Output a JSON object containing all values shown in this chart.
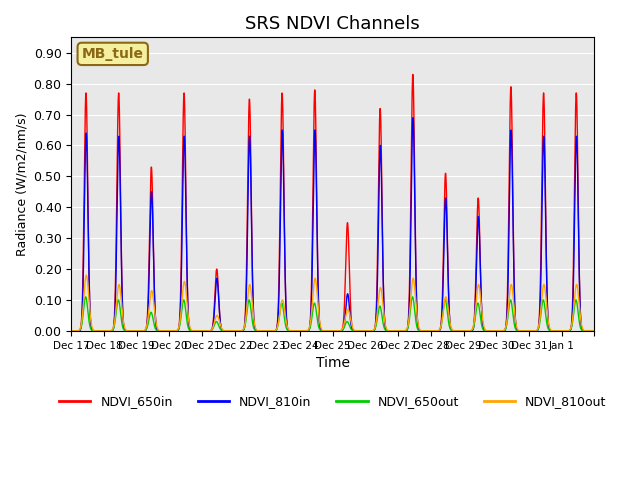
{
  "title": "SRS NDVI Channels",
  "xlabel": "Time",
  "ylabel": "Radiance (W/m2/nm/s)",
  "ylim": [
    0.0,
    0.95
  ],
  "yticks": [
    0.0,
    0.1,
    0.2,
    0.3,
    0.4,
    0.5,
    0.6,
    0.7,
    0.8,
    0.9
  ],
  "bg_color": "#e8e8e8",
  "annotation_text": "MB_tule",
  "annotation_bg": "#f5f0a0",
  "annotation_border": "#8b6914",
  "colors": {
    "NDVI_650in": "#ff0000",
    "NDVI_810in": "#0000ff",
    "NDVI_650out": "#00cc00",
    "NDVI_810out": "#ffa500"
  },
  "peak_650in": [
    0.77,
    0.77,
    0.53,
    0.77,
    0.2,
    0.75,
    0.77,
    0.78,
    0.35,
    0.72,
    0.83,
    0.51,
    0.43,
    0.79,
    0.77,
    0.77
  ],
  "peak_810in": [
    0.64,
    0.63,
    0.45,
    0.63,
    0.17,
    0.63,
    0.65,
    0.65,
    0.12,
    0.6,
    0.69,
    0.43,
    0.37,
    0.65,
    0.63,
    0.63
  ],
  "peak_650out": [
    0.11,
    0.1,
    0.06,
    0.1,
    0.03,
    0.1,
    0.09,
    0.09,
    0.03,
    0.08,
    0.11,
    0.1,
    0.09,
    0.1,
    0.1,
    0.1
  ],
  "peak_810out": [
    0.18,
    0.15,
    0.13,
    0.16,
    0.05,
    0.15,
    0.1,
    0.17,
    0.07,
    0.14,
    0.17,
    0.11,
    0.15,
    0.15,
    0.15,
    0.15
  ],
  "x_tick_positions": [
    0,
    1,
    2,
    3,
    4,
    5,
    6,
    7,
    8,
    9,
    10,
    11,
    12,
    13,
    14,
    15,
    16
  ],
  "x_tick_labels": [
    "Dec 17",
    "Dec 18",
    "Dec 19",
    "Dec 20",
    "Dec 21",
    "Dec 22",
    "Dec 23",
    "Dec 24",
    "Dec 25",
    "Dec 26",
    "Dec 27",
    "Dec 28",
    "Dec 29",
    "Dec 30",
    "Dec 31",
    "Jan 1",
    ""
  ],
  "total_days": 16
}
